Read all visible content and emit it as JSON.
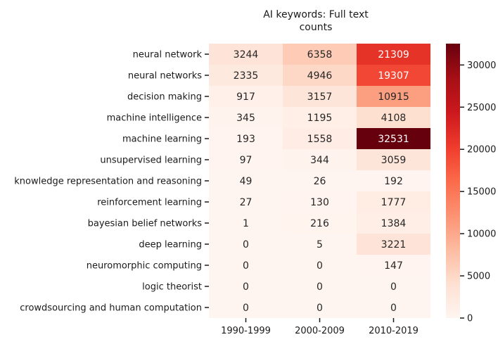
{
  "chart_data": {
    "type": "heatmap",
    "title_lines": [
      "AI keywords: Full text",
      "counts"
    ],
    "x_categories": [
      "1990-1999",
      "2000-2009",
      "2010-2019"
    ],
    "y_categories": [
      "neural network",
      "neural networks",
      "decision making",
      "machine intelligence",
      "machine learning",
      "unsupervised learning",
      "knowledge representation and reasoning",
      "reinforcement learning",
      "bayesian belief networks",
      "deep learning",
      "neuromorphic computing",
      "logic theorist",
      "crowdsourcing and human computation"
    ],
    "values": [
      [
        3244,
        6358,
        21309
      ],
      [
        2335,
        4946,
        19307
      ],
      [
        917,
        3157,
        10915
      ],
      [
        345,
        1195,
        4108
      ],
      [
        193,
        1558,
        32531
      ],
      [
        97,
        344,
        3059
      ],
      [
        49,
        26,
        192
      ],
      [
        27,
        130,
        1777
      ],
      [
        1,
        216,
        1384
      ],
      [
        0,
        5,
        3221
      ],
      [
        0,
        0,
        147
      ],
      [
        0,
        0,
        0
      ],
      [
        0,
        0,
        0
      ]
    ],
    "colormap": "Reds",
    "vmin": 0,
    "vmax": 32531,
    "colorbar_ticks": [
      0,
      5000,
      10000,
      15000,
      20000,
      25000,
      30000
    ],
    "colorbar_tick_labels": [
      "0",
      "5000",
      "10000",
      "15000",
      "20000",
      "25000",
      "30000"
    ]
  }
}
